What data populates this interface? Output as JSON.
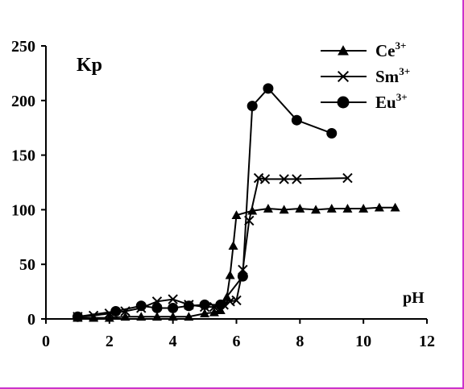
{
  "chart_data": {
    "type": "line",
    "title": "",
    "xlabel": "pH",
    "ylabel": "Kp",
    "xlim": [
      0,
      12
    ],
    "ylim": [
      0,
      250
    ],
    "xticks": [
      0,
      2,
      4,
      6,
      8,
      10,
      12
    ],
    "yticks": [
      0,
      50,
      100,
      150,
      200,
      250
    ],
    "grid": false,
    "legend_position": "top-right",
    "series": [
      {
        "name": "Ce",
        "name_sup": "3+",
        "marker": "triangle",
        "x": [
          1.0,
          1.5,
          2.0,
          2.5,
          3.0,
          3.5,
          4.0,
          4.5,
          5.0,
          5.3,
          5.5,
          5.7,
          5.8,
          5.9,
          6.0,
          6.5,
          7.0,
          7.5,
          8.0,
          8.5,
          9.0,
          9.5,
          10.0,
          10.5,
          11.0
        ],
        "y": [
          1,
          1,
          1,
          2,
          2,
          2,
          2,
          2,
          5,
          6,
          8,
          20,
          40,
          67,
          95,
          99,
          101,
          100,
          101,
          100,
          101,
          101,
          101,
          102,
          102
        ]
      },
      {
        "name": "Sm",
        "name_sup": "3+",
        "marker": "x",
        "x": [
          1.0,
          1.5,
          2.0,
          2.5,
          3.0,
          3.5,
          4.0,
          4.5,
          5.0,
          5.3,
          5.6,
          5.8,
          6.0,
          6.2,
          6.4,
          6.7,
          6.9,
          7.5,
          7.9,
          9.5
        ],
        "y": [
          2,
          3,
          5,
          7,
          10,
          16,
          18,
          13,
          11,
          11,
          13,
          16,
          17,
          45,
          90,
          129,
          128,
          128,
          128,
          129
        ]
      },
      {
        "name": "Eu",
        "name_sup": "3+",
        "marker": "circle",
        "x": [
          1.0,
          2.2,
          3.0,
          3.5,
          4.0,
          4.5,
          5.0,
          5.5,
          6.2,
          6.5,
          7.0,
          7.9,
          9.0
        ],
        "y": [
          2,
          7,
          12,
          10,
          10,
          12,
          13,
          13,
          39,
          195,
          211,
          182,
          170
        ]
      }
    ]
  }
}
